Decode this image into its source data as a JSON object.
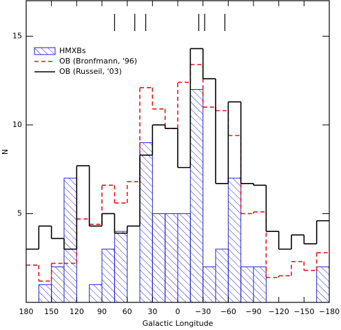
{
  "chart_data": {
    "type": "histogram",
    "xlabel": "Galactic Longitude",
    "ylabel": "N",
    "bins": [
      180,
      165,
      150,
      135,
      120,
      105,
      90,
      75,
      60,
      45,
      30,
      15,
      0,
      -15,
      -30,
      -45,
      -60,
      -75,
      -90,
      -105,
      -120,
      -135,
      -150,
      -165,
      -180
    ],
    "series": [
      {
        "name": "HMXBs",
        "color": "#2222cc",
        "style": "hatch",
        "values": [
          0,
          1,
          2,
          7,
          0,
          1,
          3,
          4,
          0,
          9,
          5,
          5,
          5,
          12,
          2,
          3,
          7,
          2,
          2,
          0,
          0,
          0,
          0,
          2
        ]
      },
      {
        "name": "OB (Bronfmann, '96)",
        "color": "#e8121a",
        "style": "dashed",
        "values": [
          2.1,
          1.2,
          2.2,
          2.2,
          4.7,
          4.4,
          6.6,
          5.6,
          6.8,
          12.1,
          10.9,
          9.8,
          12.4,
          13.4,
          11.0,
          10.8,
          9.4,
          5.0,
          5.1,
          1.4,
          1.5,
          2.3,
          1.8,
          2.8
        ]
      },
      {
        "name": "OB (Russeil, '03)",
        "color": "#000000",
        "style": "solid",
        "values": [
          3.0,
          4.3,
          3.6,
          3.0,
          7.7,
          4.3,
          5.0,
          3.9,
          4.3,
          8.3,
          10.0,
          9.8,
          7.6,
          14.3,
          12.6,
          6.7,
          11.3,
          6.7,
          6.6,
          4.0,
          3.0,
          3.8,
          3.3,
          4.6
        ]
      }
    ],
    "top_markers": [
      75,
      51,
      38,
      -25,
      -32,
      -56
    ],
    "xlim": [
      180,
      -180
    ],
    "xticks": [
      180,
      150,
      120,
      90,
      60,
      30,
      0,
      {
        "value": -30,
        "label": "−30"
      },
      {
        "value": -60,
        "label": "−60"
      },
      {
        "value": -90,
        "label": "−90"
      },
      {
        "value": -120,
        "label": "−120"
      },
      {
        "value": -150,
        "label": "−150"
      },
      {
        "value": -180,
        "label": "−180"
      }
    ],
    "ylim": [
      0,
      17
    ],
    "yticks": [
      5,
      10,
      15
    ],
    "legend": "upper left"
  }
}
